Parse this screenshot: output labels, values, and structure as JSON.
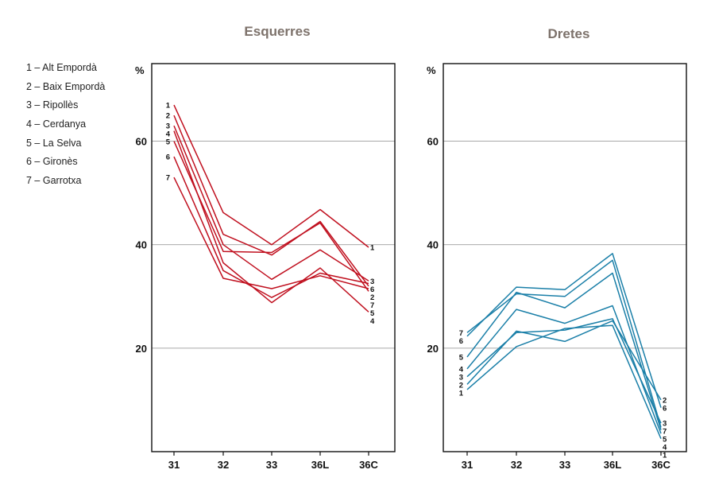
{
  "legend": [
    {
      "num": "1",
      "name": "Alt Empordà"
    },
    {
      "num": "2",
      "name": "Baix Empordà"
    },
    {
      "num": "3",
      "name": "Ripollès"
    },
    {
      "num": "4",
      "name": "Cerdanya"
    },
    {
      "num": "5",
      "name": "La Selva"
    },
    {
      "num": "6",
      "name": "Gironès"
    },
    {
      "num": "7",
      "name": "Garrotxa"
    }
  ],
  "chart_data": [
    {
      "type": "line",
      "title": "Esquerres",
      "ylabel": "%",
      "ylim": [
        0,
        75
      ],
      "yticks": [
        20,
        40,
        60
      ],
      "grid": true,
      "color": "#c0101f",
      "categories": [
        "31",
        "32",
        "33",
        "36L",
        "36C"
      ],
      "series": [
        {
          "name": "1",
          "values": [
            67,
            46.2,
            40,
            46.8,
            39.5
          ]
        },
        {
          "name": "2",
          "values": [
            65,
            42,
            38,
            44.5,
            32
          ]
        },
        {
          "name": "3",
          "values": [
            63,
            40,
            33.3,
            39,
            33
          ]
        },
        {
          "name": "4",
          "values": [
            62,
            36.5,
            28.8,
            35.5,
            27
          ]
        },
        {
          "name": "5",
          "values": [
            60,
            38.7,
            38.5,
            44.2,
            31
          ]
        },
        {
          "name": "6",
          "values": [
            57,
            35,
            29.8,
            34.5,
            32.5
          ]
        },
        {
          "name": "7",
          "values": [
            53,
            33.5,
            31.5,
            34,
            31.5
          ]
        }
      ]
    },
    {
      "type": "line",
      "title": "Dretes",
      "ylabel": "%",
      "ylim": [
        0,
        75
      ],
      "yticks": [
        20,
        40,
        60
      ],
      "grid": true,
      "color": "#1a7fa8",
      "categories": [
        "31",
        "32",
        "33",
        "36L",
        "36C"
      ],
      "series": [
        {
          "name": "1",
          "values": [
            12,
            20.3,
            23.8,
            24.4,
            2.5
          ]
        },
        {
          "name": "2",
          "values": [
            13,
            23.3,
            21.3,
            25.3,
            10
          ]
        },
        {
          "name": "3",
          "values": [
            14.5,
            23,
            23.5,
            25.7,
            5.5
          ]
        },
        {
          "name": "4",
          "values": [
            16,
            27.5,
            24.8,
            28.2,
            3.5
          ]
        },
        {
          "name": "5",
          "values": [
            18.3,
            30.8,
            27.8,
            34.5,
            4.2
          ]
        },
        {
          "name": "6",
          "values": [
            22.3,
            31.8,
            31.3,
            38.3,
            8.5
          ]
        },
        {
          "name": "7",
          "values": [
            23,
            30.5,
            30,
            37,
            4.7
          ]
        }
      ]
    }
  ]
}
